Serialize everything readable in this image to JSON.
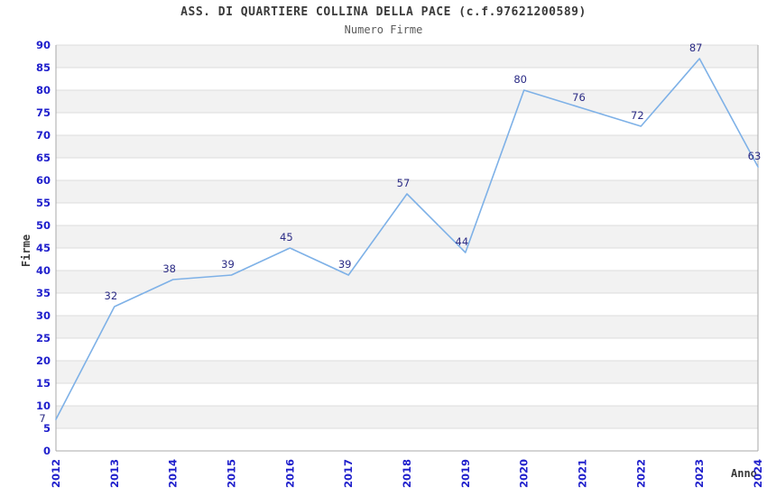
{
  "chart_data": {
    "type": "line",
    "title": "ASS. DI QUARTIERE COLLINA DELLA PACE (c.f.97621200589)",
    "subtitle": "Numero Firme",
    "xlabel": "Anno",
    "ylabel": "Firme",
    "x": [
      "2012",
      "2013",
      "2014",
      "2015",
      "2016",
      "2017",
      "2018",
      "2019",
      "2020",
      "2021",
      "2022",
      "2023",
      "2024"
    ],
    "series": [
      {
        "name": "Numero Firme",
        "values": [
          7,
          32,
          38,
          39,
          45,
          39,
          57,
          44,
          80,
          76,
          72,
          87,
          63
        ]
      }
    ],
    "ylim": [
      0,
      90
    ],
    "ytick_step": 5,
    "grid": "horizontal-alternating-bands",
    "legend": "none",
    "colors": {
      "line": "#7EB1E7",
      "tick_labels": "#2020CC",
      "value_labels": "#2B2B85",
      "title": "#3A3A3A",
      "subtitle": "#5A5A5A",
      "band": "#F2F2F2",
      "gridline": "#DCDCDC",
      "axis_border": "#A8A8A8",
      "background": "#FFFFFF"
    }
  }
}
